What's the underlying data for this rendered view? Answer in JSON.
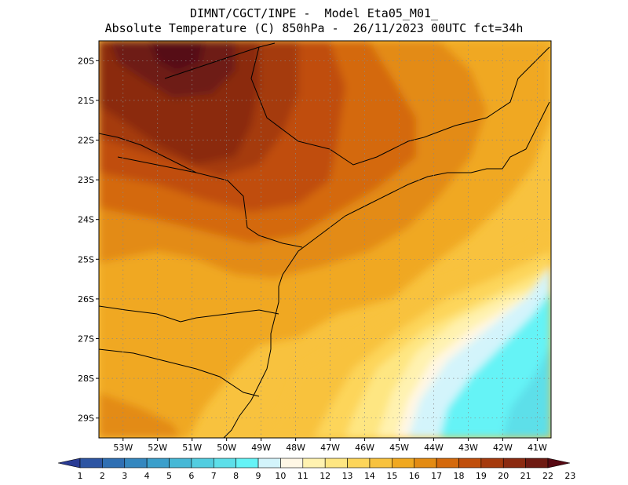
{
  "title": {
    "line1": "DIMNT/CGCT/INPE -  Model Eta05_M01_",
    "line2": "Absolute Temperature (C) 850hPa -  26/11/2023 00UTC fct=34h"
  },
  "map": {
    "lat_labels": [
      "20S",
      "21S",
      "22S",
      "23S",
      "24S",
      "25S",
      "26S",
      "27S",
      "28S",
      "29S"
    ],
    "lon_labels": [
      "53W",
      "52W",
      "51W",
      "50W",
      "49W",
      "48W",
      "47W",
      "46W",
      "45W",
      "44W",
      "43W",
      "42W",
      "41W"
    ],
    "lat_range": [
      -29.5,
      -19.5
    ],
    "lon_range": [
      -53.7,
      -40.6
    ]
  },
  "colorbar": {
    "labels": [
      "1",
      "2",
      "3",
      "4",
      "5",
      "6",
      "7",
      "8",
      "9",
      "10",
      "11",
      "12",
      "13",
      "14",
      "15",
      "16",
      "17",
      "18",
      "19",
      "20",
      "21",
      "22",
      "23"
    ],
    "colors": [
      "#2a3b94",
      "#2d55a3",
      "#2f6fb3",
      "#3487bf",
      "#3b9fcb",
      "#46b8d6",
      "#52cde0",
      "#5ddfe9",
      "#65f3f6",
      "#d3f4fb",
      "#fff7e5",
      "#fff2b0",
      "#fee682",
      "#fdd55a",
      "#f8c23e",
      "#f0a820",
      "#e38b13",
      "#d4690c",
      "#c04e0b",
      "#a53a0d",
      "#8b2a10",
      "#6e1a12",
      "#560812"
    ]
  }
}
